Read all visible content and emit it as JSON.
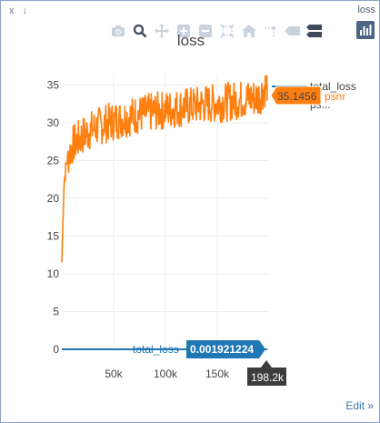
{
  "window": {
    "left_controls": "x ↓",
    "right_title": "loss"
  },
  "chart_data": {
    "type": "line",
    "title": "loss",
    "xlabel": "",
    "ylabel": "",
    "x_ticks": [
      "50k",
      "100k",
      "150k"
    ],
    "y_ticks": [
      "0",
      "5",
      "10",
      "15",
      "20",
      "25",
      "30",
      "35"
    ],
    "xlim": [
      0,
      200000
    ],
    "ylim": [
      0,
      36.5
    ],
    "grid": true,
    "legend_placement": "top-right",
    "series": [
      {
        "name": "total_loss",
        "color": "#1f77b4",
        "x": [
          0,
          198200
        ],
        "y": [
          0.0019,
          0.001921224
        ]
      },
      {
        "name": "psnr",
        "color": "#ff7f0e",
        "x": [
          0,
          2000,
          5000,
          10000,
          20000,
          30000,
          40000,
          50000,
          60000,
          70000,
          80000,
          90000,
          100000,
          110000,
          120000,
          130000,
          140000,
          150000,
          160000,
          170000,
          180000,
          190000,
          198200
        ],
        "y": [
          11.5,
          22,
          25,
          27,
          28.3,
          29.2,
          29.8,
          30.2,
          30.6,
          31.0,
          31.2,
          31.5,
          31.7,
          31.9,
          32.1,
          32.3,
          32.5,
          32.6,
          32.8,
          33.0,
          33.2,
          33.4,
          35.1456
        ]
      }
    ]
  },
  "legend": {
    "items": [
      "total_loss",
      "psnr",
      "ps..."
    ]
  },
  "hover": {
    "psnr_value": "35.1456",
    "psnr_label": "psnr",
    "total_loss_label": "total_loss",
    "total_loss_value": "0.001921224",
    "x_value": "198.2k"
  },
  "footer": {
    "edit_label": "Edit »"
  },
  "modebar": {
    "buttons": [
      "camera-icon",
      "zoom-icon",
      "pan-icon",
      "zoom-in-icon",
      "zoom-out-icon",
      "autoscale-icon",
      "reset-axes-icon",
      "spike-lines-icon",
      "closest-hover-icon",
      "compare-hover-icon",
      "plotly-logo-icon"
    ]
  }
}
